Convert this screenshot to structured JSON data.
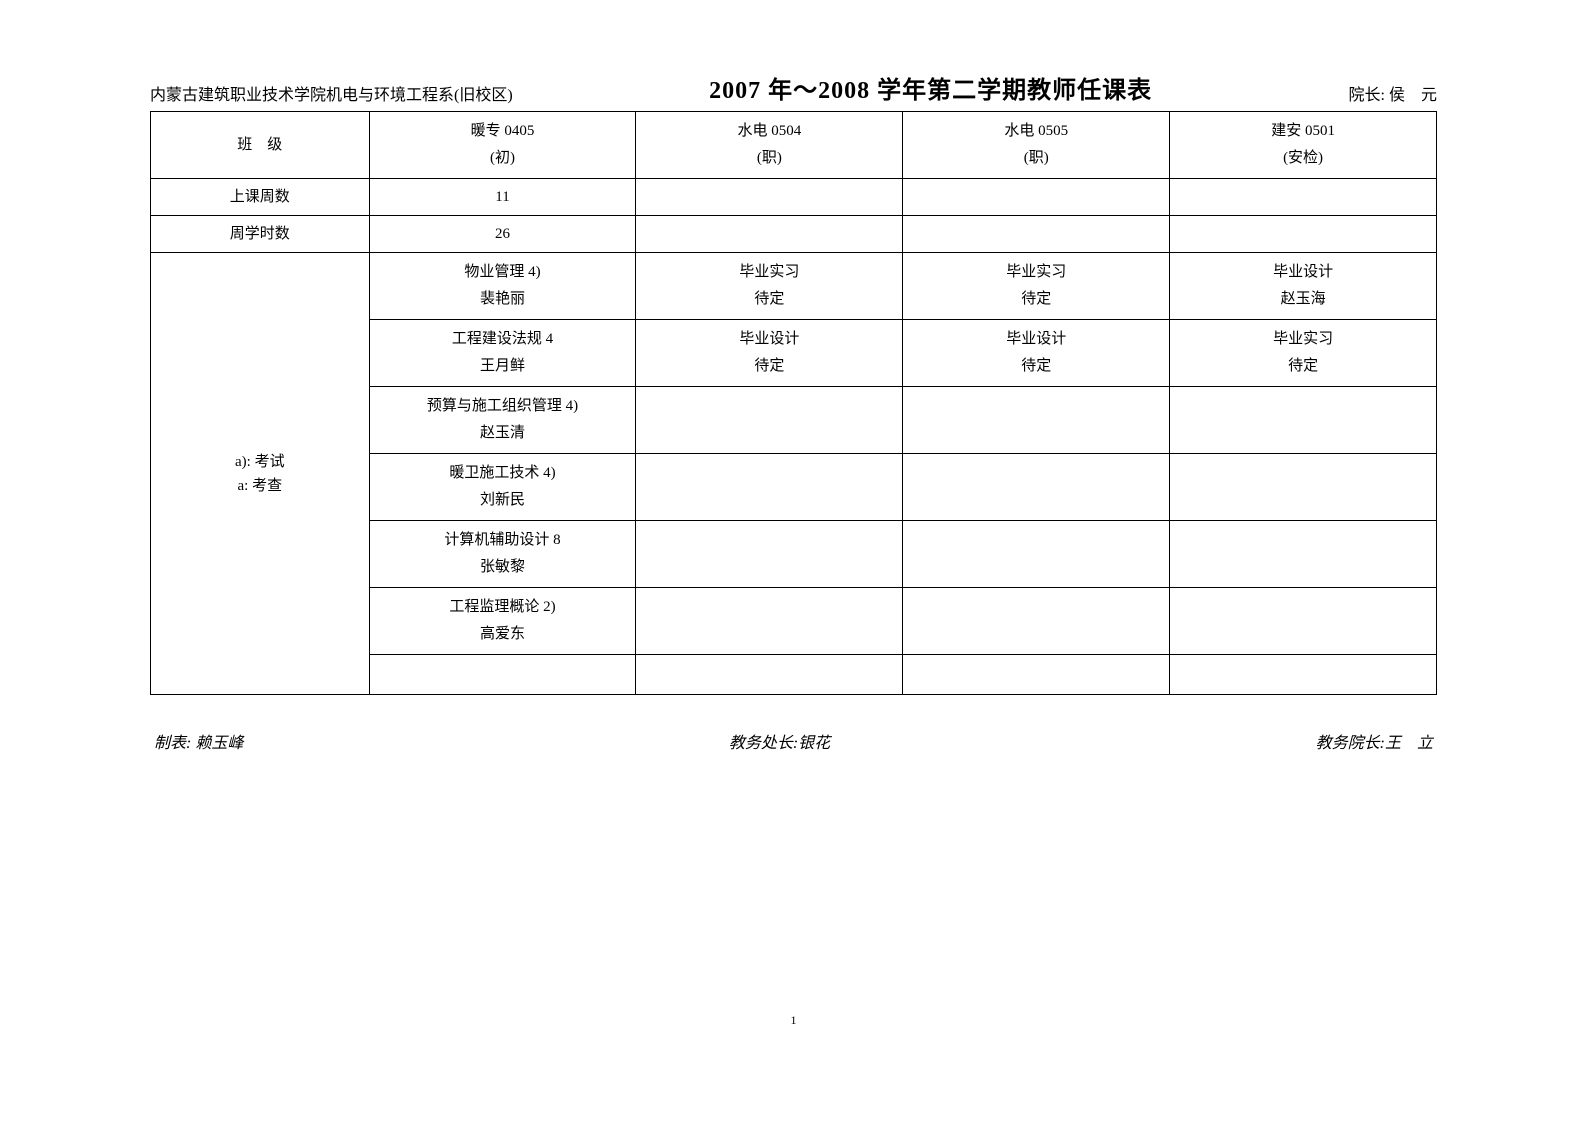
{
  "header": {
    "department": "内蒙古建筑职业技术学院机电与环境工程系(旧校区)",
    "title": "2007 年～2008 学年第二学期教师任课表",
    "dean_label": "院长:",
    "dean_name": "侯　元"
  },
  "table": {
    "row_class_label": "班　级",
    "row_weeks_label": "上课周数",
    "row_hours_label": "周学时数",
    "row_exam_label_line1": "a): 考试",
    "row_exam_label_line2": "a: 考查",
    "classes": [
      {
        "name": "暖专 0405",
        "sub": "(初)"
      },
      {
        "name": "水电 0504",
        "sub": "(职)"
      },
      {
        "name": "水电 0505",
        "sub": "(职)"
      },
      {
        "name": "建安 0501",
        "sub": "(安检)"
      }
    ],
    "weeks": [
      "11",
      "",
      "",
      ""
    ],
    "hours": [
      "26",
      "",
      "",
      ""
    ],
    "courses": [
      [
        {
          "l1": "物业管理  4)",
          "l2": "裴艳丽"
        },
        {
          "l1": "毕业实习",
          "l2": "待定"
        },
        {
          "l1": "毕业实习",
          "l2": "待定"
        },
        {
          "l1": "毕业设计",
          "l2": "赵玉海"
        }
      ],
      [
        {
          "l1": "工程建设法规  4",
          "l2": "王月鲜"
        },
        {
          "l1": "毕业设计",
          "l2": "待定"
        },
        {
          "l1": "毕业设计",
          "l2": "待定"
        },
        {
          "l1": "毕业实习",
          "l2": "待定"
        }
      ],
      [
        {
          "l1": "预算与施工组织管理 4)",
          "l2": "赵玉清"
        },
        {
          "l1": "",
          "l2": ""
        },
        {
          "l1": "",
          "l2": ""
        },
        {
          "l1": "",
          "l2": ""
        }
      ],
      [
        {
          "l1": "暖卫施工技术 4)",
          "l2": "刘新民"
        },
        {
          "l1": "",
          "l2": ""
        },
        {
          "l1": "",
          "l2": ""
        },
        {
          "l1": "",
          "l2": ""
        }
      ],
      [
        {
          "l1": "计算机辅助设计 8",
          "l2": "张敏黎"
        },
        {
          "l1": "",
          "l2": ""
        },
        {
          "l1": "",
          "l2": ""
        },
        {
          "l1": "",
          "l2": ""
        }
      ],
      [
        {
          "l1": "工程监理概论  2)",
          "l2": "高爱东"
        },
        {
          "l1": "",
          "l2": ""
        },
        {
          "l1": "",
          "l2": ""
        },
        {
          "l1": "",
          "l2": ""
        }
      ],
      [
        {
          "l1": "",
          "l2": ""
        },
        {
          "l1": "",
          "l2": ""
        },
        {
          "l1": "",
          "l2": ""
        },
        {
          "l1": "",
          "l2": ""
        }
      ]
    ]
  },
  "footer": {
    "left": "制表: 赖玉峰",
    "center": "教务处长:银花",
    "right": "教务院长:王　立"
  },
  "page_number": "1"
}
